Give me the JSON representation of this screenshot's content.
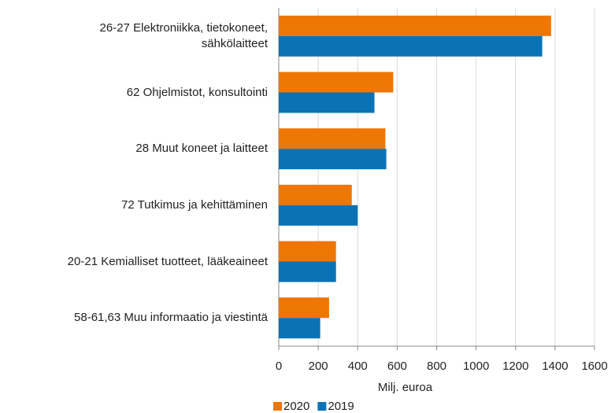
{
  "chart_data": {
    "type": "barh",
    "categories": [
      "26-27 Elektroniikka, tietokoneet,\nsähkölaitteet",
      "62 Ohjelmistot, konsultointi",
      "28 Muut koneet ja laitteet",
      "72 Tutkimus ja kehittäminen",
      "20-21 Kemialliset tuotteet, lääkeaineet",
      "58-61,63 Muu informaatio ja viestintä"
    ],
    "series": [
      {
        "name": "2020",
        "color": "#ee7603",
        "values": [
          1380,
          580,
          540,
          370,
          290,
          255
        ]
      },
      {
        "name": "2019",
        "color": "#0b72b5",
        "values": [
          1335,
          485,
          545,
          400,
          290,
          210
        ]
      }
    ],
    "xlabel": "Milj. euroa",
    "xlim": [
      0,
      1600
    ],
    "xticks": [
      0,
      200,
      400,
      600,
      800,
      1000,
      1200,
      1400,
      1600
    ],
    "grid": true,
    "legend": "bottom"
  }
}
